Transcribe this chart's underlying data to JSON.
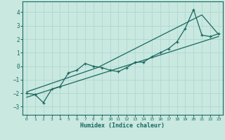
{
  "xlabel": "Humidex (Indice chaleur)",
  "ylabel": "",
  "bg_color": "#c8e8e0",
  "grid_color": "#b0d8d0",
  "line_color": "#1a6860",
  "xlim": [
    -0.5,
    23.5
  ],
  "ylim": [
    -3.6,
    4.8
  ],
  "xticks": [
    0,
    1,
    2,
    3,
    4,
    5,
    6,
    7,
    8,
    9,
    10,
    11,
    12,
    13,
    14,
    15,
    16,
    17,
    18,
    19,
    20,
    21,
    22,
    23
  ],
  "yticks": [
    -3,
    -2,
    -1,
    0,
    1,
    2,
    3,
    4
  ],
  "x_data": [
    0,
    1,
    2,
    3,
    4,
    5,
    6,
    7,
    8,
    9,
    10,
    11,
    12,
    13,
    14,
    15,
    16,
    17,
    18,
    19,
    20,
    21,
    22,
    23
  ],
  "y_data": [
    -2.0,
    -2.1,
    -2.7,
    -1.7,
    -1.5,
    -0.5,
    -0.3,
    0.2,
    0.0,
    -0.1,
    -0.3,
    -0.4,
    -0.1,
    0.3,
    0.3,
    0.7,
    1.0,
    1.3,
    1.8,
    2.8,
    4.2,
    2.3,
    2.2,
    2.4
  ],
  "trend_x": [
    0,
    23
  ],
  "trend_y": [
    -2.3,
    2.2
  ],
  "trend2_x": [
    0,
    8.5,
    21,
    23
  ],
  "trend2_y": [
    -1.9,
    -0.1,
    3.8,
    2.35
  ]
}
